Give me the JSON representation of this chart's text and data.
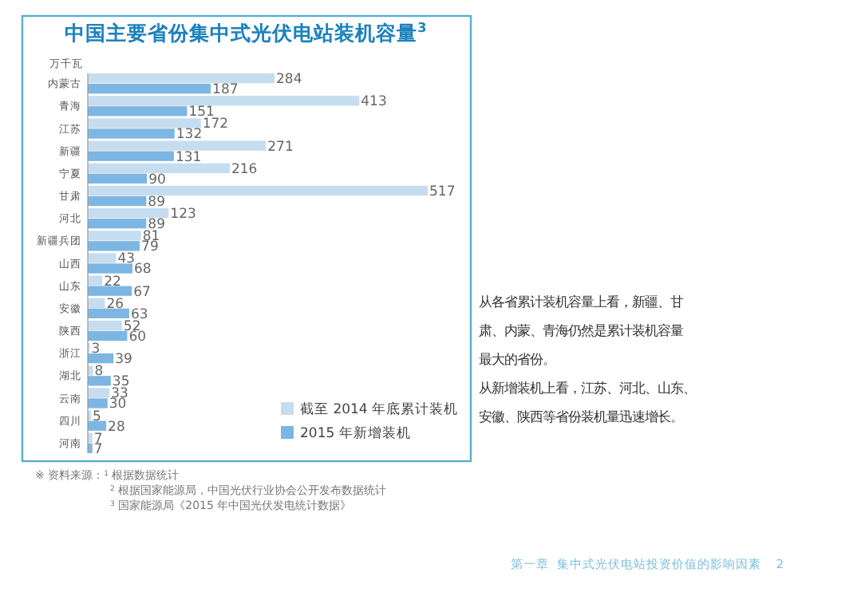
{
  "chart_data": {
    "type": "bar",
    "orientation": "horizontal",
    "title": "中国主要省份集中式光伏电站装机容量$^{3}$",
    "ylabel": "万千瓦",
    "categories": [
      "内蒙古",
      "青海",
      "江苏",
      "新疆",
      "宁夏",
      "甘肃",
      "河北",
      "新疆兵团",
      "山西",
      "山东",
      "安徽",
      "陕西",
      "浙江",
      "湖北",
      "云南",
      "四川",
      "河南"
    ],
    "series": [
      {
        "name": "截至 2014 年底累计装机",
        "color": "#c6ddf0",
        "values": [
          284,
          413,
          172,
          271,
          216,
          517,
          123,
          81,
          43,
          22,
          26,
          52,
          3,
          8,
          33,
          5,
          7
        ]
      },
      {
        "name": "2015 年新增装机",
        "color": "#7db6e2",
        "values": [
          187,
          151,
          132,
          131,
          90,
          89,
          89,
          79,
          68,
          67,
          63,
          60,
          39,
          35,
          30,
          28,
          7
        ]
      }
    ],
    "data_labels": true,
    "legend": "bottom right",
    "annotations": [
      "从各省累计装机容量上看，新疆、甘肃、内蒙、青海仍然是累计装机容量最大的省份。",
      "从新增装机上看，江苏、河北、山东、安徽、陕西等省份装机量迅速增长。",
      "※ 资料来源：$^{1}$ 根据数据统计",
      "$^{2}$ 根据国家能源局，中国光伏行业协会公开发布数据统计",
      "$^{3}$ 国家能源局《2015 年中国光伏发电统计数据》",
      "第一章  集中式光伏电站投资价值的影响因素    2"
    ]
  }
}
